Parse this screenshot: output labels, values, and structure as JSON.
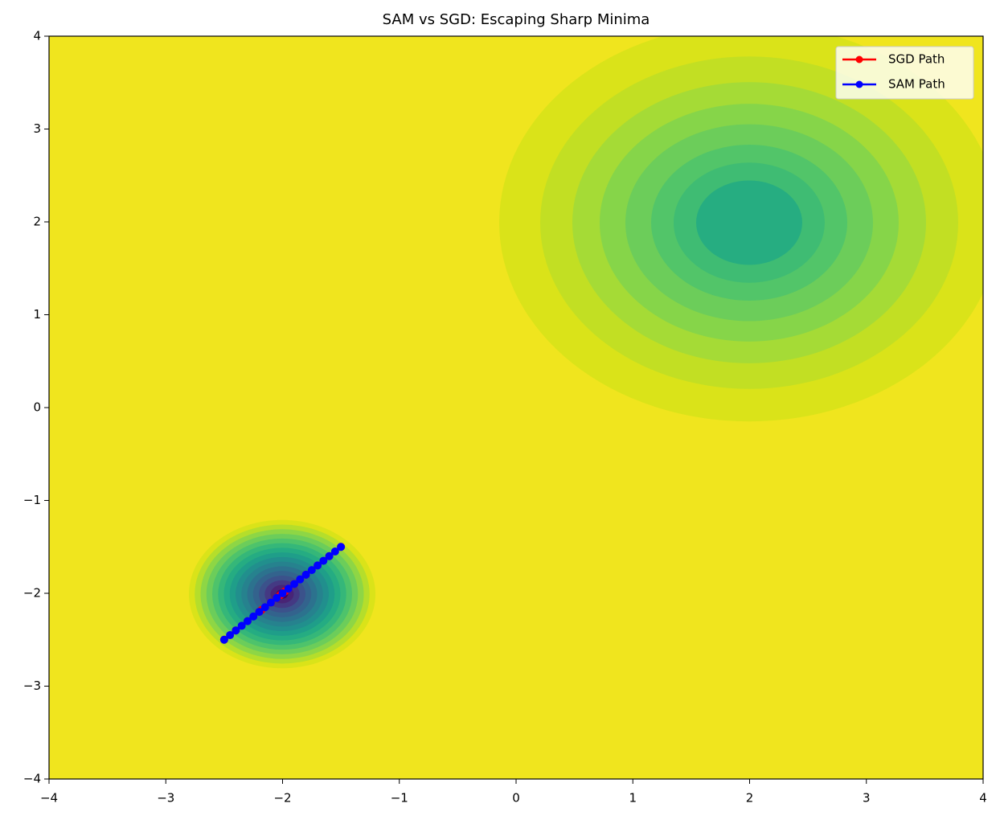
{
  "chart_data": {
    "type": "line",
    "title": "SAM vs SGD: Escaping Sharp Minima",
    "series": [
      {
        "name": "SGD Path",
        "color": "#ff0000",
        "x": [
          -2.5,
          -2.4,
          -2.3,
          -2.2,
          -2.18,
          -2.1,
          -2.05,
          -2.02,
          -2.0,
          -1.98,
          -1.95,
          -1.9,
          -1.8,
          -1.7,
          -1.6,
          -1.5
        ],
        "values": [
          -2.5,
          -2.4,
          -2.3,
          -2.2,
          -2.18,
          -2.1,
          -2.05,
          -2.02,
          -2.0,
          -1.98,
          -1.95,
          -1.9,
          -1.8,
          -1.7,
          -1.6,
          -1.5
        ]
      },
      {
        "name": "SAM Path",
        "color": "#0000ff",
        "x": [
          -2.5,
          -2.45,
          -2.4,
          -2.35,
          -2.3,
          -2.25,
          -2.2,
          -2.15,
          -2.1,
          -2.05,
          -2.0,
          -1.95,
          -1.9,
          -1.85,
          -1.8,
          -1.75,
          -1.7,
          -1.65,
          -1.6,
          -1.55,
          -1.5
        ],
        "values": [
          -2.5,
          -2.45,
          -2.4,
          -2.35,
          -2.3,
          -2.25,
          -2.2,
          -2.15,
          -2.1,
          -2.05,
          -2.0,
          -1.95,
          -1.9,
          -1.85,
          -1.8,
          -1.75,
          -1.7,
          -1.65,
          -1.6,
          -1.55,
          -1.5
        ]
      }
    ],
    "xlim": [
      -4,
      4
    ],
    "ylim": [
      -4,
      4
    ],
    "xticks": [
      {
        "value": -4,
        "label": "−4"
      },
      {
        "value": -3,
        "label": "−3"
      },
      {
        "value": -2,
        "label": "−2"
      },
      {
        "value": -1,
        "label": "−1"
      },
      0,
      1,
      2,
      3,
      4
    ],
    "yticks": [
      {
        "value": -4,
        "label": "−4"
      },
      {
        "value": -3,
        "label": "−3"
      },
      {
        "value": -2,
        "label": "−2"
      },
      {
        "value": -1,
        "label": "−1"
      },
      0,
      1,
      2,
      3,
      4
    ],
    "legend": "upper right"
  }
}
